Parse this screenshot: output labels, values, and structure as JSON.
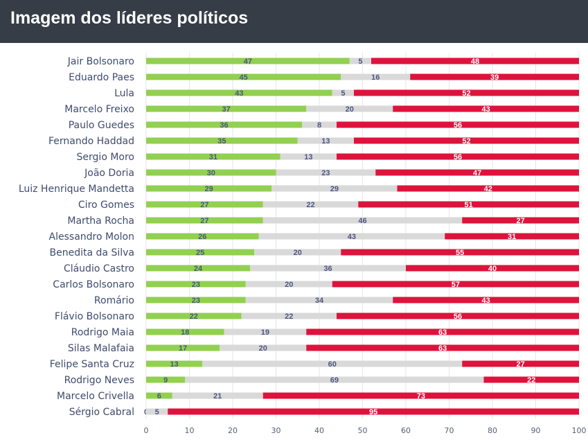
{
  "header": {
    "title": "Imagem dos líderes políticos"
  },
  "chart_data": {
    "type": "bar",
    "orientation": "horizontal",
    "stacked": true,
    "title": "Imagem dos líderes políticos",
    "xlim": [
      0,
      100
    ],
    "xticks": [
      0,
      10,
      20,
      30,
      40,
      50,
      60,
      70,
      80,
      90,
      100
    ],
    "grid": true,
    "categories": [
      "Jair Bolsonaro",
      "Eduardo Paes",
      "Lula",
      "Marcelo Freixo",
      "Paulo Guedes",
      "Fernando Haddad",
      "Sergio Moro",
      "João Doria",
      "Luiz Henrique Mandetta",
      "Ciro Gomes",
      "Martha Rocha",
      "Alessandro Molon",
      "Benedita da Silva",
      "Cláudio Castro",
      "Carlos Bolsonaro",
      "Romário",
      "Flávio Bolsonaro",
      "Rodrigo Maia",
      "Silas Malafaia",
      "Felipe Santa Cruz",
      "Rodrigo Neves",
      "Marcelo Crivella",
      "Sérgio Cabral"
    ],
    "series": [
      {
        "color": "#92d050",
        "label_color": "#4a5580",
        "values": [
          47,
          45,
          43,
          37,
          36,
          35,
          31,
          30,
          29,
          27,
          27,
          26,
          25,
          24,
          23,
          23,
          22,
          18,
          17,
          13,
          9,
          6,
          0
        ]
      },
      {
        "color": "#d9d9d9",
        "label_color": "#4a5580",
        "values": [
          5,
          16,
          5,
          20,
          8,
          13,
          13,
          23,
          29,
          22,
          46,
          43,
          20,
          36,
          20,
          34,
          22,
          19,
          20,
          60,
          69,
          21,
          5
        ]
      },
      {
        "color": "#dc143c",
        "label_color": "#ffffff",
        "values": [
          48,
          39,
          52,
          43,
          56,
          52,
          56,
          47,
          42,
          51,
          27,
          31,
          55,
          40,
          57,
          43,
          56,
          63,
          63,
          27,
          22,
          73,
          95
        ]
      }
    ]
  }
}
